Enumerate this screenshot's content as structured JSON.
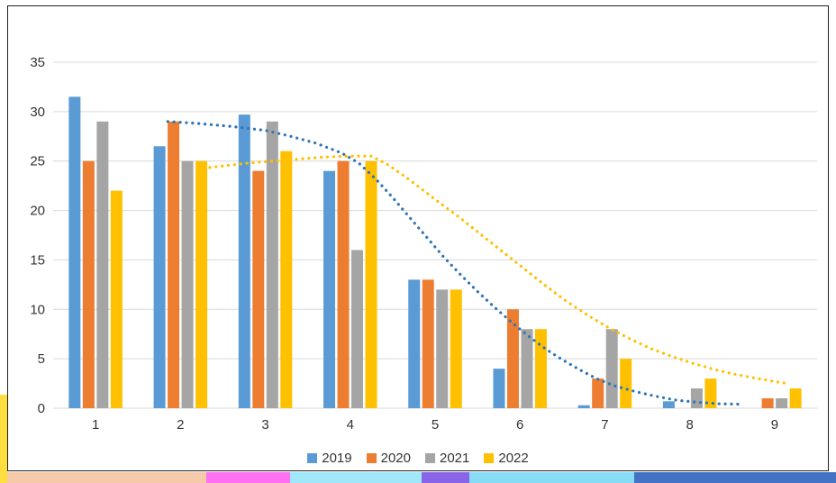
{
  "chart_data": {
    "type": "bar",
    "title": "",
    "xlabel": "",
    "ylabel": "",
    "categories": [
      "1",
      "2",
      "3",
      "4",
      "5",
      "6",
      "7",
      "8",
      "9"
    ],
    "series": [
      {
        "name": "2019",
        "color": "#5B9BD5",
        "values": [
          31.5,
          26.5,
          29.7,
          24,
          13,
          4,
          0.3,
          0.7,
          0
        ]
      },
      {
        "name": "2020",
        "color": "#ED7D31",
        "values": [
          25,
          29,
          24,
          25,
          13,
          10,
          3,
          0,
          1
        ]
      },
      {
        "name": "2021",
        "color": "#A5A5A5",
        "values": [
          29,
          25,
          29,
          16,
          12,
          8,
          8,
          2,
          1
        ]
      },
      {
        "name": "2022",
        "color": "#FFC000",
        "values": [
          22,
          25,
          26,
          25,
          12,
          8,
          5,
          3,
          2
        ]
      }
    ],
    "trendlines": [
      {
        "name": "dotted-blue",
        "color": "#2E75B6",
        "points": [
          [
            1.85,
            29.0
          ],
          [
            2.2,
            28.8
          ],
          [
            2.6,
            28.5
          ],
          [
            3.0,
            28.1
          ],
          [
            3.3,
            27.5
          ],
          [
            3.6,
            26.8
          ],
          [
            3.9,
            25.8
          ],
          [
            4.1,
            24.8
          ],
          [
            4.3,
            23.2
          ],
          [
            4.5,
            21.3
          ],
          [
            4.7,
            19.3
          ],
          [
            4.9,
            17.3
          ],
          [
            5.1,
            15.3
          ],
          [
            5.3,
            13.5
          ],
          [
            5.5,
            11.8
          ],
          [
            5.7,
            10.2
          ],
          [
            5.9,
            8.7
          ],
          [
            6.1,
            7.3
          ],
          [
            6.3,
            6.0
          ],
          [
            6.5,
            4.9
          ],
          [
            6.7,
            3.9
          ],
          [
            6.9,
            3.0
          ],
          [
            7.1,
            2.3
          ],
          [
            7.35,
            1.7
          ],
          [
            7.6,
            1.2
          ],
          [
            7.85,
            0.8
          ],
          [
            8.1,
            0.6
          ],
          [
            8.35,
            0.45
          ],
          [
            8.6,
            0.4
          ]
        ]
      },
      {
        "name": "dotted-yellow",
        "color": "#FFC000",
        "points": [
          [
            2.2,
            24.2
          ],
          [
            2.5,
            24.5
          ],
          [
            2.8,
            24.8
          ],
          [
            3.1,
            25.0
          ],
          [
            3.4,
            25.2
          ],
          [
            3.7,
            25.4
          ],
          [
            4.0,
            25.5
          ],
          [
            4.25,
            25.5
          ],
          [
            4.45,
            24.6
          ],
          [
            4.65,
            23.4
          ],
          [
            4.85,
            22.1
          ],
          [
            5.05,
            20.8
          ],
          [
            5.3,
            19.2
          ],
          [
            5.55,
            17.5
          ],
          [
            5.8,
            15.8
          ],
          [
            6.05,
            14.1
          ],
          [
            6.3,
            12.4
          ],
          [
            6.55,
            10.8
          ],
          [
            6.8,
            9.4
          ],
          [
            7.05,
            8.1
          ],
          [
            7.3,
            7.0
          ],
          [
            7.55,
            6.0
          ],
          [
            7.8,
            5.2
          ],
          [
            8.05,
            4.5
          ],
          [
            8.3,
            3.9
          ],
          [
            8.55,
            3.4
          ],
          [
            8.8,
            3.0
          ],
          [
            9.0,
            2.7
          ],
          [
            9.15,
            2.5
          ]
        ]
      }
    ],
    "y_axis": {
      "min": 0,
      "max": 35,
      "step": 5,
      "ticks": [
        "0",
        "5",
        "10",
        "15",
        "20",
        "25",
        "30",
        "35"
      ]
    },
    "ylim": [
      0,
      35
    ],
    "grid": true,
    "gridline_color": "#D9D9D9",
    "legend_position": "bottom"
  },
  "decorations": {
    "yellow": "#FFDE3F",
    "peach": "#F6C9A8",
    "magenta": "#FF6FF2",
    "cyan1": "#9FE7F9",
    "purple": "#8A64E8",
    "cyan2": "#86DCF4",
    "blue": "#4472C4"
  }
}
